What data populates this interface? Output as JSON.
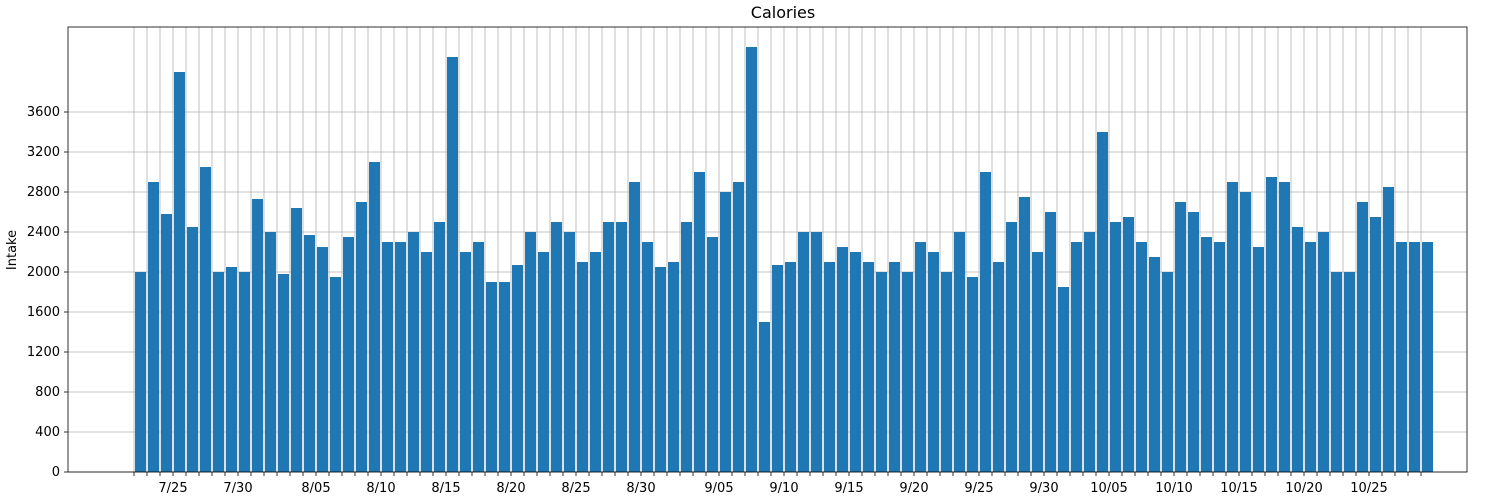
{
  "chart_data": {
    "type": "bar",
    "title": "Calories",
    "y_label": "Intake",
    "categories": [
      null,
      null,
      null,
      "7/25",
      null,
      null,
      null,
      null,
      "7/30",
      null,
      null,
      null,
      null,
      null,
      "8/05",
      null,
      null,
      null,
      null,
      "8/10",
      null,
      null,
      null,
      null,
      "8/15",
      null,
      null,
      null,
      null,
      "8/20",
      null,
      null,
      null,
      null,
      "8/25",
      null,
      null,
      null,
      null,
      "8/30",
      null,
      null,
      null,
      null,
      null,
      "9/05",
      null,
      null,
      null,
      null,
      "9/10",
      null,
      null,
      null,
      null,
      "9/15",
      null,
      null,
      null,
      null,
      "9/20",
      null,
      null,
      null,
      null,
      "9/25",
      null,
      null,
      null,
      null,
      "9/30",
      null,
      null,
      null,
      null,
      "10/05",
      null,
      null,
      null,
      null,
      "10/10",
      null,
      null,
      null,
      null,
      "10/15",
      null,
      null,
      null,
      null,
      "10/20",
      null,
      null,
      null,
      null,
      "10/25",
      null,
      null,
      null,
      null
    ],
    "values": [
      2000,
      2900,
      2580,
      4000,
      2450,
      3050,
      2000,
      2050,
      2000,
      2730,
      2400,
      1980,
      2640,
      2370,
      2250,
      1950,
      2350,
      2700,
      3100,
      2300,
      2300,
      2400,
      2200,
      2500,
      4150,
      2200,
      2300,
      1900,
      1900,
      2070,
      2400,
      2200,
      2500,
      2400,
      2100,
      2200,
      2500,
      2500,
      2900,
      2300,
      2050,
      2100,
      2500,
      3000,
      2350,
      2800,
      2900,
      4250,
      1500,
      2070,
      2100,
      2400,
      2400,
      2100,
      2250,
      2200,
      2100,
      2000,
      2100,
      2000,
      2300,
      2200,
      2000,
      2400,
      1950,
      3000,
      2100,
      2500,
      2750,
      2200,
      2600,
      1850,
      2300,
      2400,
      3400,
      2500,
      2550,
      2300,
      2150,
      2000,
      2700,
      2600,
      2350,
      2300,
      2900,
      2800,
      2250,
      2950,
      2900,
      2450,
      2300,
      2400,
      2000,
      2000,
      2700,
      2550,
      2850,
      2300,
      2300,
      2300
    ],
    "color": "#1f77b4",
    "ylim": [
      0,
      4450
    ],
    "yticks": [
      0,
      400,
      800,
      1200,
      1600,
      2000,
      2400,
      2800,
      3200,
      3600
    ],
    "grid": true
  }
}
